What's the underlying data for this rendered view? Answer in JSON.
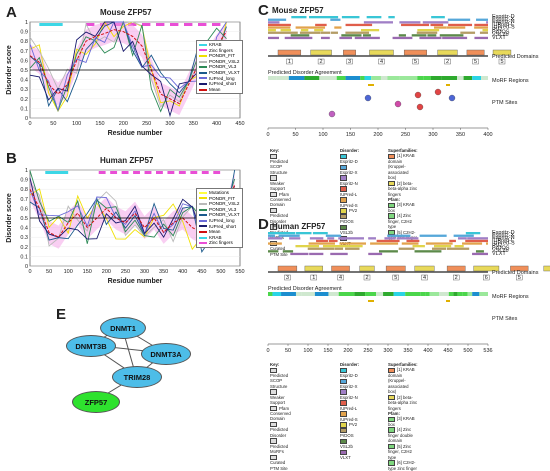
{
  "panels": {
    "A": {
      "letter": "A",
      "title": "Mouse ZFP57",
      "xlabel": "Residue number",
      "ylabel": "Disorder score",
      "xticks": [
        "0",
        "50",
        "100",
        "150",
        "200",
        "250",
        "300",
        "350",
        "400",
        "450"
      ],
      "yticks": [
        "0",
        "0.1",
        "0.2",
        "0.3",
        "0.4",
        "0.5",
        "0.6",
        "0.7",
        "0.8",
        "0.9",
        "1"
      ],
      "legend": [
        "KRAB",
        "Zinc fingers",
        "PONDR_FIT",
        "PONDR_VSL2",
        "PONDR_VL3",
        "PONDR_VLXT",
        "IUPred_long",
        "IUPred_short",
        "Mean"
      ]
    },
    "B": {
      "letter": "B",
      "title": "Human ZFP57",
      "xlabel": "Residue number",
      "ylabel": "Disorder score",
      "xticks": [
        "0",
        "50",
        "100",
        "150",
        "200",
        "250",
        "300",
        "350",
        "400",
        "450",
        "500",
        "550"
      ],
      "yticks": [
        "0",
        "0.1",
        "0.2",
        "0.3",
        "0.4",
        "0.5",
        "0.6",
        "0.7",
        "0.8",
        "0.9",
        "1"
      ],
      "legend": [
        "Mutations",
        "PONDR_FIT",
        "PONDR_VSL2",
        "PONDR_VL3",
        "PONDR_VLXT",
        "IUPred_long",
        "IUPred_short",
        "Mean",
        "KRAB",
        "Zinc fingers"
      ]
    },
    "C": {
      "letter": "C",
      "title": "Mouse ZFP57",
      "side_labels": [
        "Predicted Domains",
        "MoRF Regions",
        "PTM Sites"
      ],
      "agreement": "Predicted Disorder Agreement",
      "xticks": [
        "0",
        "50",
        "100",
        "150",
        "200",
        "250",
        "300",
        "350",
        "400"
      ],
      "tracks": [
        "Espritz-D",
        "Espritz-X",
        "Espritz-N",
        "IUPred-L",
        "IUPred-S",
        "PV2",
        "PrDOS",
        "VSL2b",
        "VLXT"
      ],
      "key_title": "Key:",
      "key": [
        "Predicted SCOP Structure",
        "Weaker Support",
        "Pfam Conserved Domain",
        "Predicted Disorder",
        "Predicted MoRFs",
        "Curated PTM Site"
      ],
      "disorder_title": "Disorder:",
      "disorder": [
        "Espritz-D",
        "Espritz-X",
        "Espritz-N",
        "IUPred-L",
        "IUPred-S",
        "PV2",
        "PrDOS",
        "VSL2b",
        "VLXT"
      ],
      "superfamilies_title": "Superfamilies:",
      "superfamilies": [
        "[1] KRAB domain (Kruppel-associated box)",
        "[2] beta-beta-alpha zinc fingers"
      ],
      "pfam_title": "Pfam:",
      "pfam": [
        "[3] KRAB box",
        "[4] Zinc finger, C2H2 type",
        "[5] C2H2-type zinc finger"
      ],
      "domain_numbers": [
        "1",
        "2",
        "3",
        "4",
        "5",
        "2",
        "5",
        "5"
      ]
    },
    "D": {
      "letter": "D",
      "title": "Human ZFP57",
      "side_labels": [
        "Predicted Domains",
        "MoRF Regions",
        "PTM Sites"
      ],
      "agreement": "Predicted Disorder Agreement",
      "xticks": [
        "0",
        "50",
        "100",
        "150",
        "200",
        "250",
        "300",
        "350",
        "400",
        "450",
        "500",
        "536"
      ],
      "tracks": [
        "Espritz-D",
        "Espritz-X",
        "Espritz-N",
        "IUPred-L",
        "IUPred-S",
        "PV2",
        "PrDOS",
        "VSL2b",
        "VLXT"
      ],
      "key_title": "Key:",
      "key": [
        "Predicted SCOP Structure",
        "Weaker Support",
        "Pfam Conserved Domain",
        "Predicted Disorder",
        "Predicted MoRFs",
        "Curated PTM Site"
      ],
      "disorder_title": "Disorder:",
      "disorder": [
        "Espritz-D",
        "Espritz-X",
        "Espritz-N",
        "IUPred-L",
        "IUPred-S",
        "PV2",
        "PrDOS",
        "VSL2b",
        "VLXT"
      ],
      "superfamilies_title": "Superfamilies:",
      "superfamilies": [
        "[1] KRAB domain (Kruppel-associated box)",
        "[2] beta-beta-alpha zinc fingers"
      ],
      "pfam_title": "Pfam:",
      "pfam": [
        "[3] KRAB box",
        "[4] Zinc finger double domain",
        "[5] Zinc finger, C2H2 type",
        "[6] C2H2-type zinc finger"
      ],
      "domain_numbers": [
        "3",
        "1",
        "4",
        "2",
        "5",
        "4",
        "2",
        "6",
        "5",
        "6"
      ]
    },
    "E": {
      "letter": "E",
      "nodes": [
        "DNMT1",
        "DNMT3B",
        "DNMT3A",
        "TRIM28",
        "ZFP57"
      ]
    }
  },
  "colors": {
    "krab": "#3cd7e6",
    "zinc": "#e94fd6",
    "fit": "#f0e000",
    "vsl2": "#b9b9b9",
    "vl3": "#2e8b57",
    "vlxt": "#1b5a8c",
    "iul": "#6a6ad8",
    "ius": "#1a1a6e",
    "mean": "#d01010",
    "mutation": "#ffff40",
    "node_blue": "#4dbde8",
    "node_green": "#2ee22e"
  },
  "chart_data": [
    {
      "type": "line",
      "title": "Mouse ZFP57",
      "xlabel": "Residue number",
      "ylabel": "Disorder score",
      "xlim": [
        0,
        450
      ],
      "ylim": [
        0,
        1
      ],
      "series": [
        {
          "name": "Mean",
          "x": [
            0,
            20,
            40,
            60,
            80,
            100,
            120,
            140,
            160,
            180,
            200,
            220,
            240,
            260,
            280,
            300,
            320,
            340,
            360,
            380,
            400,
            421
          ],
          "values": [
            0.65,
            0.58,
            0.35,
            0.25,
            0.35,
            0.6,
            0.8,
            0.85,
            0.88,
            0.92,
            0.9,
            0.85,
            0.75,
            0.5,
            0.25,
            0.2,
            0.15,
            0.35,
            0.55,
            0.6,
            0.75,
            0.9
          ]
        }
      ],
      "shaded": [
        {
          "name": "KRAB",
          "x": [
            20,
            70
          ]
        },
        {
          "name": "Zinc fingers",
          "x": [
            120,
            415
          ]
        }
      ]
    },
    {
      "type": "line",
      "title": "Human ZFP57",
      "xlabel": "Residue number",
      "ylabel": "Disorder score",
      "xlim": [
        0,
        550
      ],
      "ylim": [
        0,
        1
      ],
      "series": [
        {
          "name": "Mean",
          "x": [
            0,
            25,
            50,
            75,
            100,
            125,
            150,
            175,
            200,
            225,
            250,
            275,
            300,
            325,
            350,
            375,
            400,
            425,
            450,
            475,
            500,
            536
          ],
          "values": [
            0.8,
            0.6,
            0.35,
            0.3,
            0.45,
            0.55,
            0.4,
            0.5,
            0.6,
            0.5,
            0.45,
            0.55,
            0.4,
            0.5,
            0.35,
            0.45,
            0.5,
            0.4,
            0.35,
            0.3,
            0.4,
            0.85
          ]
        }
      ],
      "shaded": [
        {
          "name": "KRAB",
          "x": [
            40,
            100
          ]
        },
        {
          "name": "Zinc fingers",
          "x": [
            180,
            500
          ]
        }
      ]
    }
  ]
}
